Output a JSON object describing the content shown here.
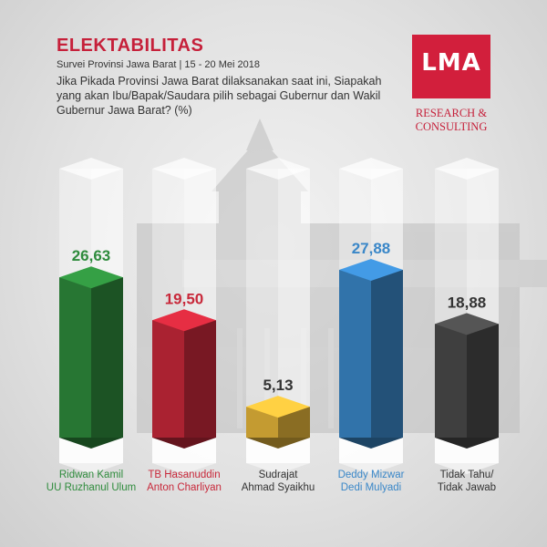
{
  "header": {
    "title": "ELEKTABILITAS",
    "subtitle": "Survei Provinsi Jawa Barat | 15 - 20 Mei 2018",
    "question": "Jika Pikada Provinsi Jawa Barat dilaksanakan saat ini, Siapakah yang akan Ibu/Bapak/Saudara pilih sebagai Gubernur dan Wakil Gubernur Jawa Barat? (%)"
  },
  "logo": {
    "text": "LMA",
    "tagline": "RESEARCH & CONSULTING",
    "color": "#d21f3c"
  },
  "chart_data": {
    "type": "bar",
    "title": "ELEKTABILITAS",
    "categories": [
      [
        "Ridwan Kamil",
        "UU Ruzhanul Ulum"
      ],
      [
        "TB Hasanuddin",
        "Anton Charliyan"
      ],
      [
        "Sudrajat",
        "Ahmad Syaikhu"
      ],
      [
        "Deddy Mizwar",
        "Dedi Mulyadi"
      ],
      [
        "Tidak Tahu/",
        "Tidak Jawab"
      ]
    ],
    "values": [
      26.63,
      19.5,
      5.13,
      27.88,
      18.88
    ],
    "value_labels": [
      "26,63",
      "19,50",
      "5,13",
      "27,88",
      "18,88"
    ],
    "colors": [
      "#2e8b3c",
      "#c8283a",
      "#e6b63a",
      "#3a87c8",
      "#4a4a4a"
    ],
    "label_colors": [
      "#2e8b3c",
      "#c8283a",
      "#333333",
      "#3a87c8",
      "#333333"
    ],
    "ylim": [
      0,
      32
    ],
    "grid": false,
    "legend": "none"
  }
}
